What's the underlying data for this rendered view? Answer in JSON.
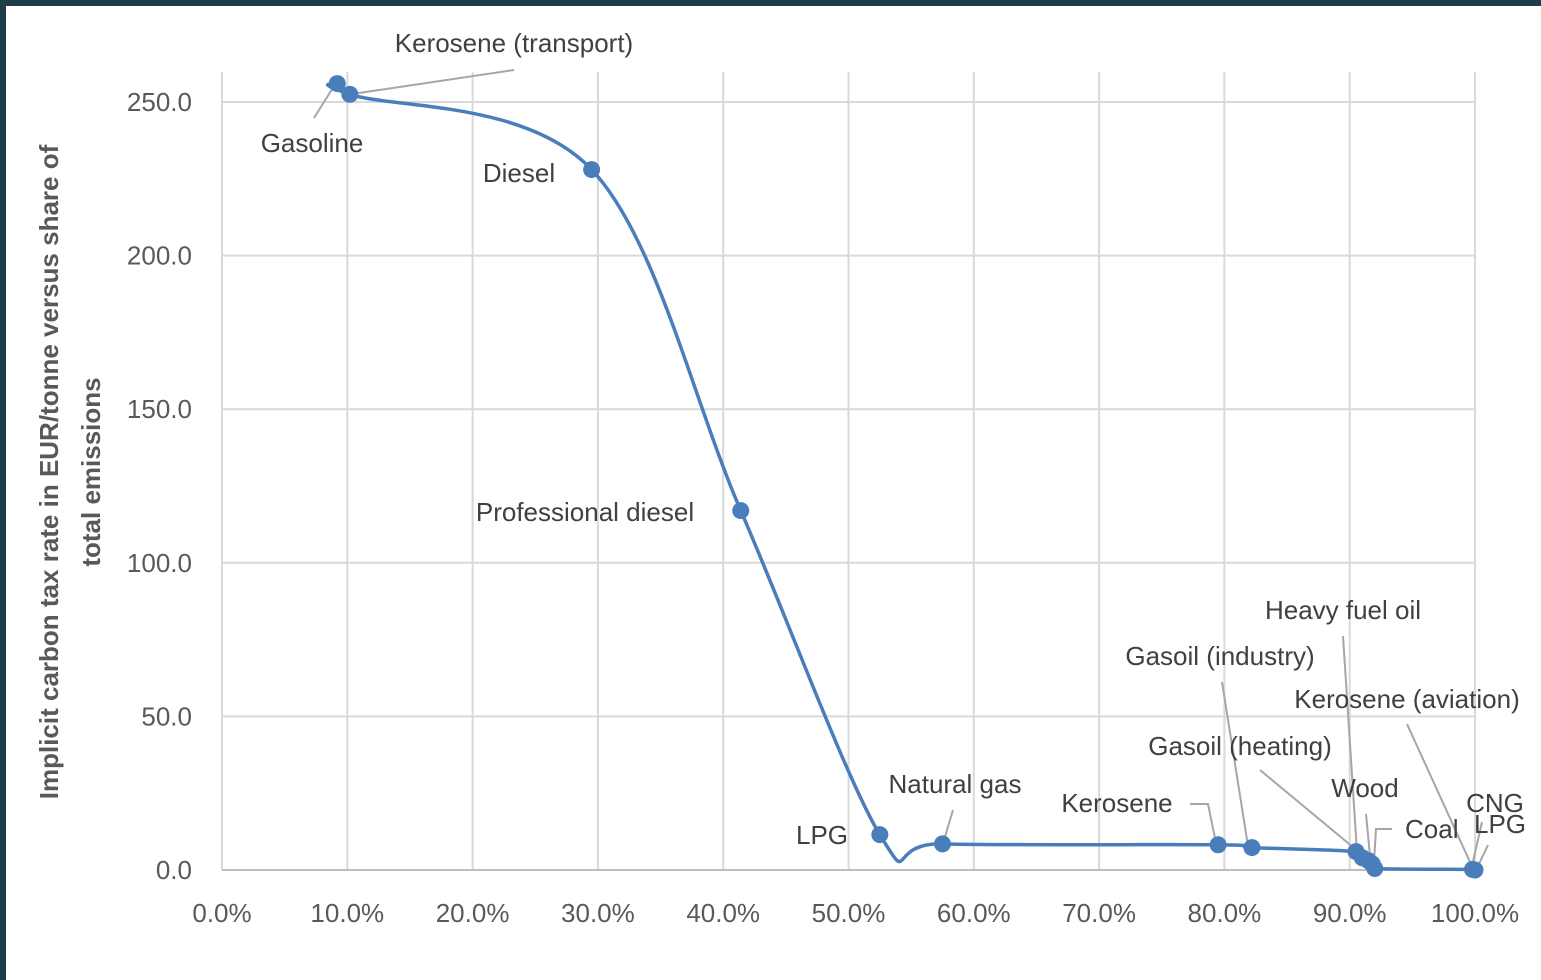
{
  "chart_data": {
    "type": "line",
    "title": "",
    "xlabel": "",
    "ylabel": "Implicit carbon tax rate in EUR/tonne versus share of total emissions",
    "ylabel_lines": [
      "Implicit carbon tax rate in EUR/tonne versus share of",
      "total emissions"
    ],
    "xlim": [
      0,
      100
    ],
    "ylim": [
      0,
      250
    ],
    "x_ticks": [
      "0.0%",
      "10.0%",
      "20.0%",
      "30.0%",
      "40.0%",
      "50.0%",
      "60.0%",
      "70.0%",
      "80.0%",
      "90.0%",
      "100.0%"
    ],
    "y_ticks": [
      "0.0",
      "50.0",
      "100.0",
      "150.0",
      "200.0",
      "250.0"
    ],
    "grid": true,
    "smooth": true,
    "series": [
      {
        "color": "#4a7ebb",
        "points": [
          {
            "label": "Gasoline",
            "x": 9.2,
            "y": 256
          },
          {
            "label": "Kerosene (transport)",
            "x": 10.2,
            "y": 252.5
          },
          {
            "label": "Diesel",
            "x": 29.5,
            "y": 228
          },
          {
            "label": "Professional diesel",
            "x": 41.4,
            "y": 117
          },
          {
            "label": "LPG",
            "x": 52.5,
            "y": 11.5
          },
          {
            "label": "Natural gas",
            "x": 57.5,
            "y": 8.5
          },
          {
            "label": "Kerosene",
            "x": 79.5,
            "y": 8.2
          },
          {
            "label": "Gasoil (industry)",
            "x": 82.2,
            "y": 7.3
          },
          {
            "label": "Gasoil (heating)",
            "x": 90.5,
            "y": 6
          },
          {
            "label": "Heavy fuel oil",
            "x": 91.0,
            "y": 4
          },
          {
            "label": "Wood",
            "x": 91.5,
            "y": 3
          },
          {
            "label": "Kerosene (aviation)",
            "x": 91.8,
            "y": 2
          },
          {
            "label": "Coal",
            "x": 92.0,
            "y": 0.5
          },
          {
            "label": "CNG",
            "x": 99.8,
            "y": 0.2
          },
          {
            "label": "LPG",
            "x": 100,
            "y": 0
          }
        ]
      }
    ]
  }
}
